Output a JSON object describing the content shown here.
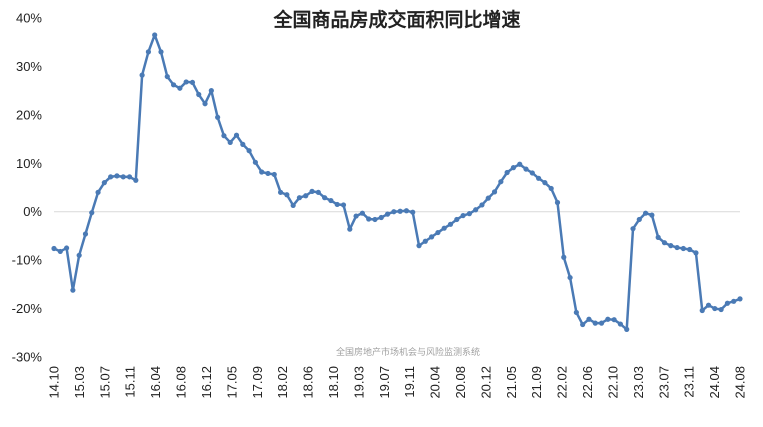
{
  "chart_data": {
    "type": "line",
    "title": "全国商品房成交面积同比增速",
    "watermark": "全国房地产市场机会与风险监测系统",
    "line_color": "#4a7ab5",
    "zero_line_color": "#d9d9d9",
    "ylim": [
      -30,
      40
    ],
    "yticks": [
      "-30%",
      "-20%",
      "-10%",
      "0%",
      "10%",
      "20%",
      "30%",
      "40%"
    ],
    "xtick_labels": [
      "14.10",
      "15.03",
      "15.07",
      "15.11",
      "16.04",
      "16.08",
      "16.12",
      "17.05",
      "17.09",
      "18.02",
      "18.06",
      "18.10",
      "19.03",
      "19.07",
      "19.11",
      "20.04",
      "20.08",
      "20.12",
      "21.05",
      "21.09",
      "22.02",
      "22.06",
      "22.10",
      "23.03",
      "23.07",
      "23.11",
      "24.04",
      "24.08"
    ],
    "series": [
      {
        "values": [
          -7.6,
          -8.2,
          -7.5,
          -16.2,
          -9.0,
          -4.6,
          -0.2,
          4.0,
          6.0,
          7.2,
          7.4,
          7.2,
          7.2,
          6.5,
          28.2,
          33.0,
          36.5,
          33.0,
          27.9,
          26.2,
          25.5,
          26.8,
          26.7,
          24.2,
          22.3,
          25.0,
          19.5,
          15.7,
          14.3,
          15.8,
          13.9,
          12.6,
          10.2,
          8.2,
          7.9,
          7.7,
          4.0,
          3.5,
          1.3,
          2.9,
          3.3,
          4.2,
          4.0,
          2.9,
          2.3,
          1.5,
          1.4,
          -3.6,
          -0.9,
          -0.3,
          -1.5,
          -1.6,
          -1.2,
          -0.5,
          0.0,
          0.1,
          0.2,
          -0.1,
          -7.0,
          -6.1,
          -5.2,
          -4.3,
          -3.4,
          -2.6,
          -1.6,
          -0.8,
          -0.4,
          0.4,
          1.4,
          2.8,
          4.1,
          6.2,
          8.1,
          9.1,
          9.8,
          8.8,
          8.0,
          6.9,
          6.0,
          4.8,
          1.9,
          -9.4,
          -13.6,
          -20.8,
          -23.3,
          -22.2,
          -23.0,
          -23.0,
          -22.2,
          -22.3,
          -23.2,
          -24.3,
          -3.5,
          -1.6,
          -0.3,
          -0.7,
          -5.3,
          -6.4,
          -7.0,
          -7.4,
          -7.6,
          -7.8,
          -8.5,
          -20.4,
          -19.3,
          -20.0,
          -20.2,
          -18.9,
          -18.5,
          -18.0
        ]
      }
    ]
  }
}
